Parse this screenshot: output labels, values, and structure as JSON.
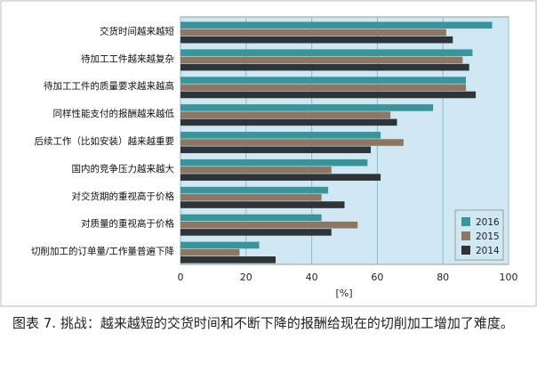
{
  "chart_data": {
    "type": "bar",
    "orientation": "horizontal",
    "categories": [
      "交货时间越来越短",
      "待加工工件越来越复杂",
      "待加工工件的质量要求越来越高",
      "同样性能支付的报酬越来越低",
      "后续工作（比如安装）越来越重要",
      "国内的竞争压力越来越大",
      "对交货期的重视高于价格",
      "对质量的重视高于价格",
      "切削加工的订单量/工作量普遍下降"
    ],
    "series": [
      {
        "name": "2016",
        "color": "#3a9499",
        "values": [
          95,
          89,
          87,
          77,
          61,
          57,
          45,
          43,
          24
        ]
      },
      {
        "name": "2015",
        "color": "#8c7765",
        "values": [
          81,
          86,
          87,
          64,
          68,
          46,
          43,
          54,
          18
        ]
      },
      {
        "name": "2014",
        "color": "#2f3438",
        "values": [
          83,
          88,
          90,
          66,
          58,
          61,
          50,
          46,
          29
        ]
      }
    ],
    "xlim": [
      0,
      100
    ],
    "xticks": [
      "0",
      "20",
      "40",
      "60",
      "80",
      "100"
    ],
    "xlabel": "[%]",
    "ylabel": "",
    "grid": "vertical",
    "legend": "bottom-right",
    "plot_background": "#cfe8f3"
  },
  "caption": "图表 7. 挑战：越来越短的交货时间和不断下降的报酬给现在的切削加工增加了难度。"
}
